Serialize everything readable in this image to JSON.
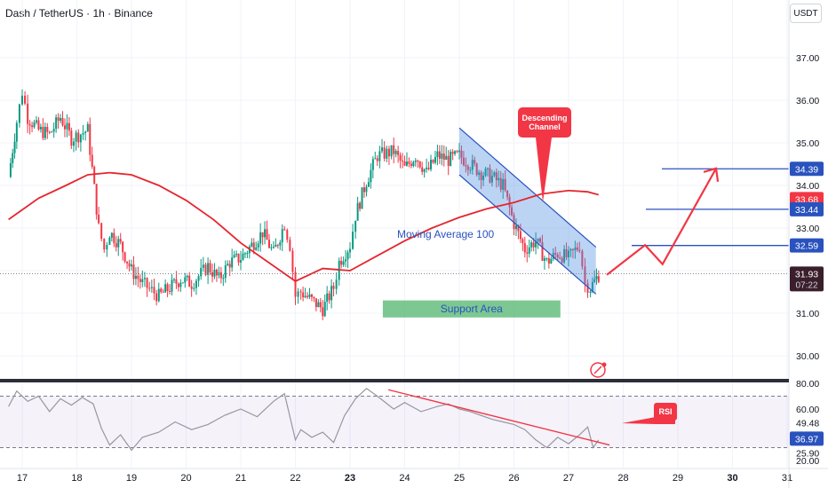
{
  "header": {
    "title": "Dash / TetherUS · 1h · Binance",
    "currency": "USDT"
  },
  "chart_data": [
    {
      "type": "candlestick",
      "title": "Dash / TetherUS · 1h · Binance",
      "y_axis": {
        "ticks": [
          "37.00",
          "36.00",
          "35.00",
          "34.00",
          "33.00",
          "32.00",
          "31.00",
          "30.00"
        ],
        "ylim": [
          29.4,
          38.2
        ]
      },
      "x_axis": {
        "ticks": [
          "17",
          "18",
          "19",
          "20",
          "21",
          "22",
          "23",
          "24",
          "25",
          "26",
          "27",
          "28",
          "29",
          "30",
          "31"
        ],
        "bold_ticks": [
          "23",
          "30"
        ]
      },
      "series": [
        {
          "kind": "ohlc-path",
          "days": [
            16.75,
            16.9,
            17.0,
            17.1,
            17.3,
            17.5,
            17.7,
            17.9,
            18.2,
            18.4,
            18.5,
            18.6,
            18.8,
            19.0,
            19.2,
            19.5,
            19.7,
            19.9,
            20.1,
            20.4,
            20.6,
            20.8,
            21.0,
            21.2,
            21.4,
            21.6,
            21.8,
            21.9,
            22.0,
            22.1,
            22.3,
            22.5,
            22.7,
            22.8,
            23.0,
            23.1,
            23.3,
            23.5,
            23.8,
            24.0,
            24.2,
            24.4,
            24.6,
            24.8,
            25.0,
            25.2,
            25.4,
            25.6,
            25.8,
            26.0,
            26.2,
            26.4,
            26.6,
            26.8,
            27.0,
            27.2,
            27.3,
            27.4,
            27.55
          ],
          "closes": [
            34.2,
            35.5,
            36.2,
            35.6,
            35.3,
            35.2,
            35.6,
            35.1,
            35.3,
            33.0,
            32.5,
            32.9,
            32.6,
            32.0,
            31.7,
            31.4,
            31.6,
            31.8,
            31.7,
            32.1,
            31.8,
            32.2,
            32.3,
            32.6,
            32.9,
            32.4,
            33.1,
            32.6,
            31.4,
            31.5,
            31.3,
            31.1,
            31.6,
            32.2,
            32.6,
            33.3,
            34.1,
            34.7,
            34.8,
            34.4,
            34.7,
            34.3,
            34.7,
            34.6,
            34.7,
            34.5,
            34.3,
            34.2,
            34.0,
            33.1,
            32.5,
            32.7,
            32.2,
            32.4,
            32.3,
            32.6,
            31.7,
            31.6,
            31.9
          ]
        },
        {
          "name": "Moving Average 100",
          "days": [
            16.75,
            17.3,
            17.8,
            18.2,
            18.6,
            19.0,
            19.5,
            20.0,
            20.5,
            21.0,
            21.5,
            22.0,
            22.5,
            23.0,
            23.5,
            24.0,
            24.5,
            25.0,
            25.5,
            26.0,
            26.5,
            27.0,
            27.35,
            27.55
          ],
          "values": [
            33.2,
            33.7,
            34.0,
            34.25,
            34.3,
            34.25,
            34.0,
            33.65,
            33.2,
            32.65,
            32.2,
            31.75,
            32.05,
            32.0,
            32.35,
            32.7,
            33.0,
            33.25,
            33.45,
            33.6,
            33.8,
            33.88,
            33.85,
            33.78
          ]
        }
      ],
      "last_price": "31.93",
      "countdown": "07:22",
      "price_labels": [
        "34.39",
        "33.68",
        "33.44",
        "32.59"
      ],
      "levels": [
        34.39,
        33.44,
        32.59
      ],
      "channel": {
        "upper": [
          [
            25.0,
            35.35
          ],
          [
            27.5,
            32.55
          ]
        ],
        "lower": [
          [
            25.0,
            34.25
          ],
          [
            27.5,
            31.45
          ]
        ]
      },
      "support_area": {
        "label": "Support Area",
        "from_day": 23.6,
        "to_day": 26.85,
        "low": 30.9,
        "high": 31.3
      },
      "projection": {
        "days": [
          27.7,
          28.4,
          28.72,
          29.7
        ],
        "values": [
          31.9,
          32.6,
          32.15,
          34.4
        ]
      },
      "annotations": [
        "Descending Channel",
        "Moving Average 100"
      ]
    },
    {
      "type": "line",
      "name": "RSI",
      "y_axis": {
        "ticks": [
          "80.00",
          "60.00",
          "25.90",
          "20.00"
        ],
        "ylim": [
          17,
          83
        ]
      },
      "levels": [
        70,
        30
      ],
      "days": [
        16.75,
        16.9,
        17.1,
        17.3,
        17.5,
        17.7,
        17.9,
        18.1,
        18.3,
        18.45,
        18.6,
        18.8,
        19.0,
        19.2,
        19.5,
        19.8,
        20.1,
        20.4,
        20.7,
        21.0,
        21.3,
        21.6,
        21.8,
        22.0,
        22.1,
        22.3,
        22.5,
        22.7,
        22.9,
        23.1,
        23.3,
        23.5,
        23.8,
        24.0,
        24.3,
        24.6,
        24.8,
        25.0,
        25.2,
        25.4,
        25.6,
        25.8,
        26.0,
        26.2,
        26.4,
        26.6,
        26.8,
        27.0,
        27.2,
        27.35,
        27.45,
        27.55
      ],
      "values": [
        62,
        74,
        66,
        70,
        58,
        68,
        63,
        69,
        64,
        45,
        32,
        40,
        28,
        38,
        42,
        50,
        44,
        48,
        55,
        60,
        54,
        66,
        72,
        36,
        44,
        38,
        42,
        34,
        55,
        68,
        76,
        70,
        60,
        65,
        58,
        62,
        64,
        60,
        58,
        55,
        52,
        50,
        48,
        44,
        36,
        30,
        38,
        33,
        40,
        46,
        30,
        36
      ],
      "readouts": [
        "49.48",
        "36.97"
      ],
      "trendline": {
        "days": [
          23.7,
          27.75
        ],
        "values": [
          75,
          32
        ]
      },
      "label": "RSI"
    }
  ],
  "colors": {
    "candle_up": "#089981",
    "candle_down": "#f23645",
    "ma": "#e5262f",
    "channel_fill": "#4f8ee3",
    "level": "#2a52be",
    "support": "#51b56d",
    "accent": "#f23645"
  }
}
